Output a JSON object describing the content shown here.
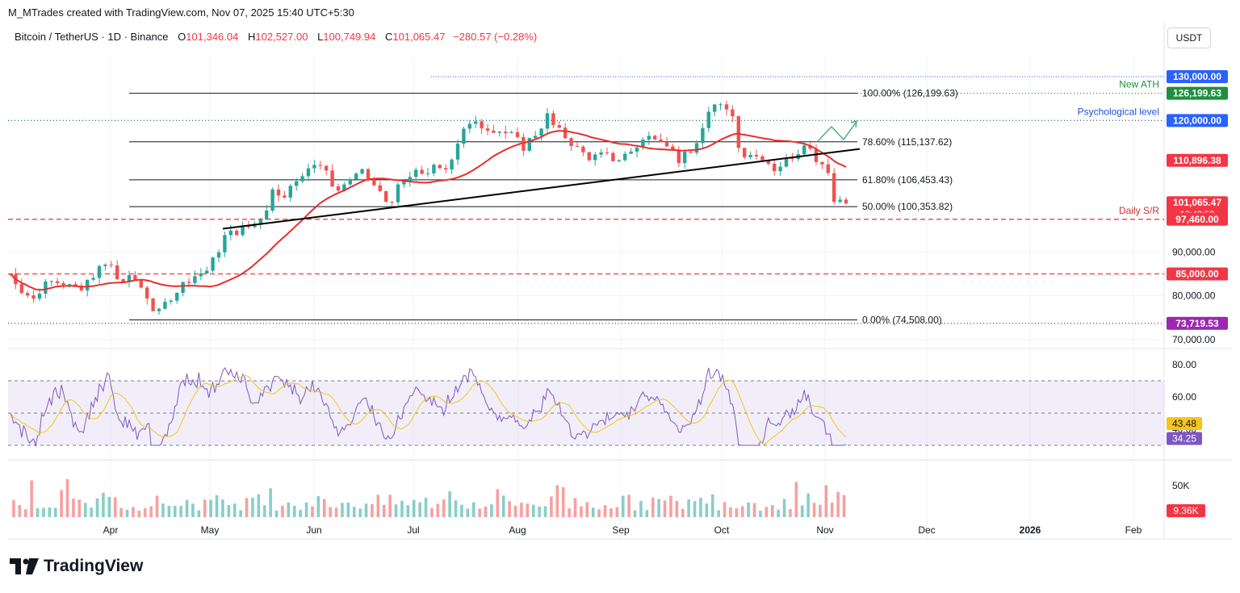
{
  "credit": "M_MTrades created with TradingView.com, Nov 07, 2025 15:40 UTC+5:30",
  "header": {
    "symbol": "Bitcoin / TetherUS · 1D · Binance",
    "o_label": "O",
    "o": "101,346.04",
    "h_label": "H",
    "h": "102,527.00",
    "l_label": "L",
    "l": "100,749.94",
    "c_label": "C",
    "c": "101,065.47",
    "change": "−280.57 (−0.28%)"
  },
  "currency_button": "USDT",
  "brand": "TradingView",
  "colors": {
    "up": "#26a69a",
    "down": "#ef5350",
    "ma": "#e62e2e",
    "rsi": "#7e57c2",
    "rsi_ma": "#f5c518",
    "ath": "#1e8f3f",
    "psych": "#1e50d8",
    "purple": "#9c27b0"
  },
  "chart_data": {
    "type": "candlestick",
    "x_months": [
      "Apr",
      "May",
      "Jun",
      "Jul",
      "Aug",
      "Sep",
      "Oct",
      "Nov",
      "Dec",
      "2026",
      "Feb"
    ],
    "y_ticks": [
      "90,000.00",
      "80,000.00",
      "70,000.00"
    ],
    "y_range": [
      68000,
      133000
    ],
    "fib_levels": [
      {
        "label": "100.00% (126,199.63)",
        "price": 126199.63
      },
      {
        "label": "78.60% (115,137.62)",
        "price": 115137.62
      },
      {
        "label": "61.80% (106,453.43)",
        "price": 106453.43
      },
      {
        "label": "50.00% (100,353.82)",
        "price": 100353.82
      },
      {
        "label": "0.00% (74,508.00)",
        "price": 74508
      }
    ],
    "horizontal_levels": [
      {
        "name": "New ATH",
        "price": 126199.63,
        "tag": "126,199.63"
      },
      {
        "name": "Psychological level",
        "price": 120000,
        "tag": "120,000.00"
      },
      {
        "name": "Daily S/R",
        "price": 97460,
        "tag": "97,460.00"
      },
      {
        "name": "",
        "price": 85000,
        "tag": "85,000.00"
      },
      {
        "name": "",
        "price": 73719.53,
        "tag": "73,719.53"
      },
      {
        "name": "",
        "price": 130000,
        "tag": "130,000.00"
      }
    ],
    "price_tags": [
      {
        "value": "110,896.38",
        "price": 110896.38,
        "note": ""
      },
      {
        "value": "101,065.47",
        "price": 101065.47,
        "note": "13:49:52"
      }
    ],
    "trendline": {
      "from": [
        "May",
        95300
      ],
      "to": [
        "Nov",
        113500
      ]
    },
    "rsi": {
      "y_ticks": [
        "80.00",
        "60.00",
        "40.00"
      ],
      "bands": [
        70,
        30
      ],
      "mid": 50,
      "rsi_value": "34.25",
      "rsi_ma_value": "43.48"
    },
    "volume": {
      "tick": "50K",
      "last": "9.36K"
    }
  }
}
